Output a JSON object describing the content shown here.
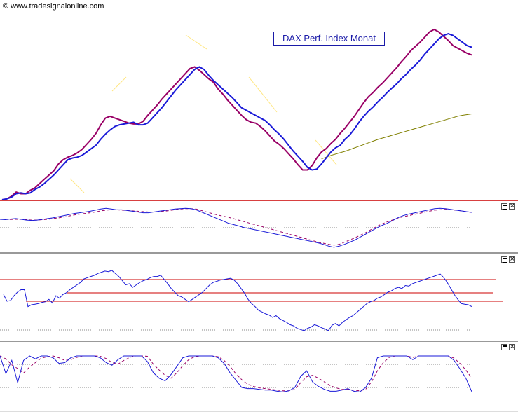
{
  "header": {
    "copyright": "© www.tradesignalonline.com",
    "title": "DAX Perf. Index Monat"
  },
  "panels": [
    {
      "name": "price"
    },
    {
      "name": "oscillator-1"
    },
    {
      "name": "oscillator-2"
    },
    {
      "name": "oscillator-3"
    }
  ],
  "icons": {
    "maximize": "maximize-icon",
    "close": "close-icon",
    "close_glyph": "×"
  },
  "colors": {
    "price_line": "#1a1ad8",
    "signal_line": "#990066",
    "long_ma": "#808000",
    "guide": "#ffe680",
    "dotted": "#888888",
    "panel_divider": "#cc0000",
    "ref_line": "#cc0000"
  },
  "chart_data": [
    {
      "type": "line",
      "title": "DAX Perf. Index Monat",
      "x": [
        0,
        1,
        2,
        3,
        4,
        5,
        6,
        7,
        8,
        9,
        10,
        11,
        12,
        13,
        14,
        15,
        16,
        17,
        18,
        19,
        20,
        21,
        22,
        23,
        24,
        25,
        26,
        27,
        28,
        29,
        30,
        31,
        32,
        33,
        34,
        35,
        36,
        37,
        38,
        39,
        40,
        41,
        42,
        43,
        44,
        45,
        46,
        47,
        48,
        49,
        50,
        51,
        52,
        53,
        54,
        55,
        56,
        57,
        58,
        59,
        60,
        61,
        62,
        63,
        64,
        65,
        66,
        67,
        68,
        69,
        70,
        71,
        72,
        73,
        74,
        75,
        76,
        77,
        78,
        79,
        80,
        81,
        82,
        83,
        84,
        85,
        86,
        87,
        88,
        89,
        90,
        91,
        92,
        93,
        94,
        95,
        96,
        97,
        98,
        99,
        100
      ],
      "series": [
        {
          "values": [
            0.0,
            0.5,
            1.5,
            3.5,
            4.0,
            3.5,
            4.0,
            6.0,
            7.5,
            9.5,
            12,
            14.5,
            17.5,
            20.5,
            23.5,
            24.5,
            25,
            26,
            28,
            30,
            32,
            35.5,
            38.5,
            41,
            43,
            44,
            44.5,
            45,
            45.5,
            44,
            44,
            45,
            48,
            51,
            54,
            57.5,
            61,
            64.5,
            67.5,
            70.5,
            73.5,
            76.5,
            78,
            76.5,
            73,
            70,
            67.5,
            65,
            62.5,
            60,
            57,
            54,
            52.5,
            51,
            49.5,
            48,
            46.5,
            44,
            41,
            38.5,
            35.5,
            32,
            28.5,
            25.5,
            22.5,
            19,
            17.5,
            18,
            21,
            24.5,
            28,
            30.5,
            32,
            35.5,
            38,
            41.5,
            45.5,
            49,
            52,
            54.5,
            57.5,
            60,
            63,
            65.5,
            68,
            71,
            73.5,
            76.5,
            79,
            82,
            85.5,
            88.5,
            91.5,
            94.5,
            96.5,
            97.5,
            96.5,
            94.5,
            92.5,
            90.5,
            89.5
          ]
        },
        {
          "values": [
            0.0,
            0.5,
            2.0,
            4.5,
            3.5,
            3.5,
            5.5,
            7.0,
            9.5,
            12,
            14.5,
            17,
            21,
            23.5,
            25,
            26,
            27.5,
            29.5,
            32.5,
            35.5,
            39,
            44,
            48,
            49,
            48,
            47,
            46,
            45,
            44.5,
            44.5,
            46,
            49.5,
            52.5,
            55.5,
            59,
            62,
            65,
            68,
            71,
            74,
            77,
            78,
            76,
            73.5,
            71,
            69,
            65,
            62,
            58.5,
            55.5,
            52.5,
            49.5,
            47,
            45.5,
            45,
            43,
            40.5,
            37.5,
            34.5,
            32.5,
            30,
            27,
            24,
            20.5,
            17.5,
            17.5,
            20,
            24.5,
            28,
            30,
            33,
            35.5,
            39,
            42,
            45.5,
            49,
            53,
            57,
            60.5,
            63,
            66,
            68.5,
            71.5,
            74.5,
            77.5,
            81,
            84,
            87.5,
            90,
            92.5,
            95.5,
            98.5,
            100,
            98.5,
            96,
            93.5,
            90.5,
            89,
            87.5,
            86,
            85
          ]
        },
        {
          "values": [
            null,
            null,
            null,
            null,
            null,
            null,
            null,
            null,
            null,
            null,
            null,
            null,
            null,
            null,
            null,
            null,
            null,
            null,
            null,
            null,
            null,
            null,
            null,
            null,
            null,
            null,
            null,
            null,
            null,
            null,
            null,
            null,
            null,
            null,
            null,
            null,
            null,
            null,
            null,
            null,
            null,
            null,
            null,
            null,
            null,
            null,
            null,
            null,
            null,
            null,
            null,
            null,
            null,
            null,
            null,
            null,
            null,
            null,
            null,
            null,
            null,
            null,
            null,
            null,
            null,
            null,
            null,
            null,
            24.0,
            25.0,
            26.0,
            26.8,
            27.6,
            28.4,
            29.4,
            30.4,
            31.4,
            32.4,
            33.4,
            34.4,
            35.4,
            36.2,
            37.0,
            37.8,
            38.6,
            39.4,
            40.2,
            41.0,
            41.8,
            42.6,
            43.4,
            44.2,
            45.0,
            45.8,
            46.6,
            47.4,
            48.2,
            49.0,
            49.6,
            50.0,
            50.4
          ]
        }
      ],
      "ylim": [
        0,
        100
      ]
    },
    {
      "type": "line",
      "series": [
        {
          "values": [
            0.0,
            -0.5,
            0.5,
            1.0,
            0.0,
            -1.0,
            -1.5,
            -1.0,
            0.0,
            1.0,
            2.0,
            3.5,
            5.0,
            6.5,
            8.0,
            9.0,
            10.0,
            11.0,
            12.5,
            14.0,
            15.0,
            14.0,
            13.0,
            13.0,
            12.0,
            11.0,
            10.0,
            9.0,
            9.0,
            10.0,
            11.0,
            12.0,
            13.0,
            14.0,
            14.5,
            15.0,
            14.5,
            13.0,
            10.0,
            7.0,
            4.0,
            1.0,
            -2.0,
            -5.0,
            -7.0,
            -9.0,
            -11.0,
            -12.5,
            -14.0,
            -15.5,
            -17.0,
            -18.5,
            -20.0,
            -21.5,
            -23.0,
            -24.5,
            -26.0,
            -27.5,
            -29.0,
            -30.5,
            -32.0,
            -34.0,
            -36.5,
            -38.0,
            -36.5,
            -34.0,
            -31.0,
            -28.0,
            -24.0,
            -20.0,
            -16.0,
            -12.0,
            -8.5,
            -5.5,
            -2.0,
            2.0,
            5.0,
            7.0,
            8.5,
            10.0,
            11.5,
            13.0,
            14.5,
            15.0,
            14.5,
            13.5,
            12.5,
            11.5,
            10.5,
            9.5
          ]
        },
        {
          "values": [
            0.0,
            0.0,
            -0.2,
            0.0,
            0.0,
            -0.5,
            -1.0,
            -1.0,
            -0.5,
            0.0,
            1.0,
            2.0,
            3.0,
            4.5,
            6.0,
            7.0,
            8.0,
            9.0,
            10.0,
            11.5,
            12.5,
            13.0,
            13.0,
            12.5,
            12.0,
            11.5,
            11.0,
            10.5,
            10.0,
            10.0,
            10.5,
            11.0,
            12.0,
            13.0,
            14.0,
            14.5,
            14.5,
            14.0,
            12.0,
            10.0,
            8.0,
            6.0,
            4.5,
            3.0,
            1.0,
            -1.0,
            -3.0,
            -5.0,
            -7.0,
            -9.0,
            -11.0,
            -13.0,
            -15.0,
            -17.0,
            -19.0,
            -21.0,
            -23.0,
            -25.0,
            -27.0,
            -29.0,
            -31.0,
            -32.5,
            -34.0,
            -35.0,
            -34.0,
            -31.0,
            -28.0,
            -25.0,
            -21.5,
            -18.0,
            -14.0,
            -10.0,
            -6.5,
            -3.5,
            -1.0,
            1.5,
            3.5,
            5.0,
            6.5,
            8.0,
            9.5,
            11.0,
            12.5,
            13.0,
            13.5,
            13.0,
            12.5,
            11.5,
            10.5,
            9.5
          ]
        }
      ],
      "ylim": [
        -40,
        20
      ]
    },
    {
      "type": "line",
      "series": [
        {
          "values": [
            60,
            49,
            50,
            58,
            64,
            68,
            68,
            40,
            43,
            44,
            45,
            47,
            48,
            52,
            46,
            58,
            54,
            60,
            63,
            68,
            72,
            76,
            80,
            86,
            88,
            90,
            92,
            95,
            97,
            99,
            98,
            100,
            95,
            90,
            83,
            76,
            78,
            72,
            76,
            80,
            83,
            85,
            88,
            90,
            90,
            92,
            85,
            78,
            70,
            64,
            58,
            56,
            52,
            48,
            52,
            56,
            60,
            64,
            70,
            76,
            80,
            82,
            84,
            85,
            86,
            87,
            84,
            78,
            70,
            62,
            52,
            45,
            40,
            34,
            31,
            28,
            26,
            22,
            25,
            20,
            17,
            14,
            10,
            8,
            4,
            2,
            0,
            4,
            6,
            10,
            8,
            5,
            3,
            0,
            9,
            12,
            8,
            14,
            18,
            22,
            25,
            30,
            35,
            40,
            45,
            48,
            50,
            54,
            56,
            60,
            64,
            66,
            70,
            72,
            70,
            75,
            74,
            78,
            80,
            82,
            84,
            86,
            88,
            90,
            92,
            94,
            88,
            80,
            70,
            60,
            52,
            45,
            44,
            43,
            40
          ]
        }
      ],
      "ylim": [
        0,
        100
      ]
    },
    {
      "type": "line",
      "series": [
        {
          "values": [
            100,
            52,
            88,
            28,
            88,
            100,
            92,
            100,
            100,
            95,
            80,
            82,
            95,
            100,
            100,
            100,
            100,
            95,
            82,
            75,
            90,
            100,
            100,
            100,
            100,
            85,
            55,
            40,
            33,
            50,
            72,
            95,
            100,
            100,
            100,
            100,
            100,
            95,
            80,
            55,
            35,
            15,
            12,
            12,
            10,
            8,
            8,
            5,
            3,
            6,
            15,
            45,
            60,
            30,
            18,
            10,
            5,
            5,
            8,
            12,
            5,
            3,
            15,
            40,
            95,
            100,
            100,
            100,
            100,
            100,
            90,
            100,
            100,
            100,
            100,
            100,
            100,
            88,
            65,
            40,
            4
          ]
        },
        {
          "values": [
            100,
            92,
            76,
            66,
            54,
            70,
            82,
            94,
            98,
            100,
            95,
            88,
            90,
            96,
            100,
            100,
            100,
            99,
            93,
            82,
            78,
            88,
            96,
            100,
            100,
            99,
            78,
            62,
            48,
            40,
            55,
            74,
            90,
            98,
            100,
            100,
            100,
            98,
            88,
            72,
            52,
            36,
            24,
            18,
            14,
            12,
            10,
            8,
            6,
            6,
            10,
            28,
            44,
            48,
            40,
            30,
            20,
            14,
            10,
            10,
            8,
            6,
            10,
            30,
            60,
            82,
            96,
            100,
            100,
            100,
            96,
            100,
            100,
            100,
            100,
            100,
            100,
            94,
            80,
            62,
            40
          ]
        }
      ],
      "ylim": [
        0,
        100
      ]
    }
  ]
}
